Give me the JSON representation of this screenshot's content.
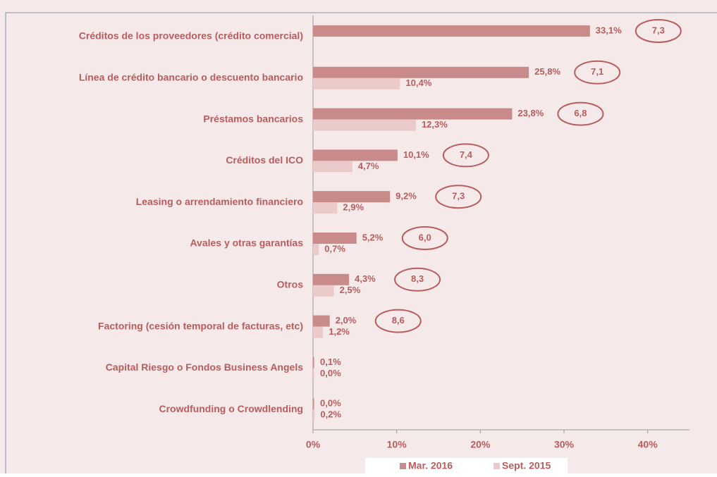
{
  "chart_data": {
    "type": "hbar",
    "categories": [
      "Créditos de los proveedores (crédito comercial)",
      "Línea de crédito bancario o descuento bancario",
      "Préstamos bancarios",
      "Créditos del ICO",
      "Leasing o arrendamiento financiero",
      "Avales y otras garantías",
      "Otros",
      "Factoring (cesión temporal de facturas, etc)",
      "Capital Riesgo o Fondos Business Angels",
      "Crowdfunding o Crowdlending"
    ],
    "series": [
      {
        "name": "Mar. 2016",
        "color": "#c98a8a",
        "values": [
          33.1,
          25.8,
          23.8,
          10.1,
          9.2,
          5.2,
          4.3,
          2.0,
          0.1,
          0.0
        ],
        "value_labels": [
          "33,1%",
          "25,8%",
          "23,8%",
          "10,1%",
          "9,2%",
          "5,2%",
          "4,3%",
          "2,0%",
          "0,1%",
          "0,0%"
        ]
      },
      {
        "name": "Sept. 2015",
        "color": "#ebcaca",
        "values": [
          null,
          10.4,
          12.3,
          4.7,
          2.9,
          0.7,
          2.5,
          1.2,
          0.0,
          0.2
        ],
        "value_labels": [
          null,
          "10,4%",
          "12,3%",
          "4,7%",
          "2,9%",
          "0,7%",
          "2,5%",
          "1,2%",
          "0,0%",
          "0,2%"
        ]
      }
    ],
    "annotations": {
      "values": [
        7.3,
        7.1,
        6.8,
        7.4,
        7.3,
        6.0,
        8.3,
        8.6
      ],
      "value_labels": [
        "7,3",
        "7,1",
        "6,8",
        "7,4",
        "7,3",
        "6,0",
        "8,3",
        "8,6"
      ]
    },
    "xlim": [
      0,
      45
    ],
    "xticks": [
      {
        "value": 0,
        "label": "0%"
      },
      {
        "value": 10,
        "label": "10%"
      },
      {
        "value": 20,
        "label": "20%"
      },
      {
        "value": 30,
        "label": "30%"
      },
      {
        "value": 40,
        "label": "40%"
      }
    ],
    "legend": "bottom"
  }
}
